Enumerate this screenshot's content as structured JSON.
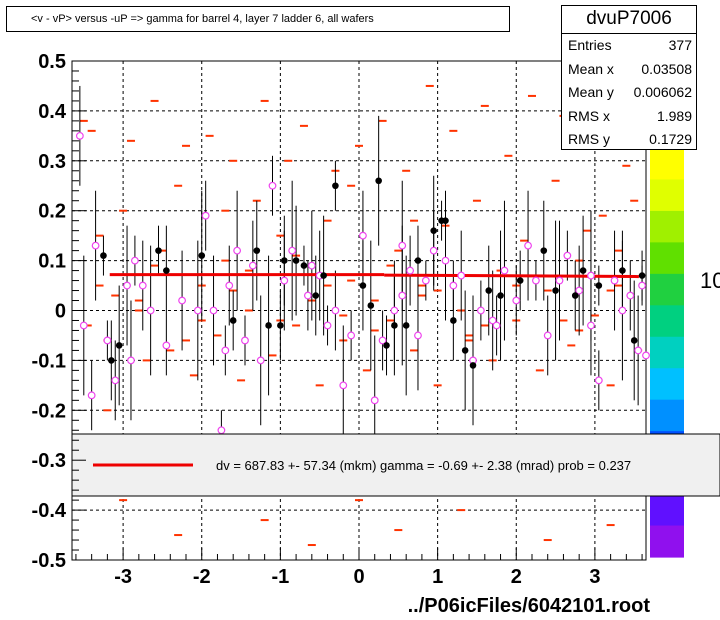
{
  "title": "<v - vP>       versus  -uP =>  gamma for barrel 4, layer 7 ladder 6, all wafers",
  "footer": "../P06icFiles/6042101.root",
  "stats": {
    "name": "dvuP7006",
    "rows": [
      {
        "label": "Entries",
        "value": "377"
      },
      {
        "label": "Mean x",
        "value": "0.03508"
      },
      {
        "label": "Mean y",
        "value": "0.006062"
      },
      {
        "label": "RMS x",
        "value": "1.989"
      },
      {
        "label": "RMS y",
        "value": "0.1729"
      }
    ]
  },
  "colors": {
    "histogram": "#ff3300",
    "profile_black": "#000000",
    "profile_open": "#ee44ee",
    "fit": "#ee0000",
    "legend_bg": "#f0f0f0"
  },
  "chart_data": {
    "type": "scatter",
    "xlim": [
      -3.65,
      3.65
    ],
    "ylim": [
      -0.5,
      0.5
    ],
    "xticks": [
      -3,
      -2,
      -1,
      0,
      1,
      2,
      3
    ],
    "xtick_labels": [
      "-3",
      "-2",
      "-1",
      "0",
      "1",
      "2",
      "3"
    ],
    "yticks": [
      -0.5,
      -0.4,
      -0.3,
      -0.2,
      -0.1,
      0,
      0.1,
      0.2,
      0.3,
      0.4,
      0.5
    ],
    "ytick_labels": [
      "-0.5",
      "-0.4",
      "-0.3",
      "-0.2",
      "-0.1",
      "0",
      "0.1",
      "0.2",
      "0.3",
      "0.4",
      "0.5"
    ],
    "grid": true,
    "palette_labels": [
      "10",
      "10"
    ],
    "fit": {
      "text": "dv =  687.83 +- 57.34 (mkm) gamma =   -0.69 +-  2.38 (mrad) prob = 0.237",
      "segments": [
        {
          "x": [
            -3.17,
            0.32
          ],
          "y": [
            0.072,
            0.072
          ]
        },
        {
          "x": [
            0.32,
            3.56
          ],
          "y": [
            0.071,
            0.068
          ]
        }
      ]
    },
    "histogram_cells": [
      [
        -3.5,
        0.38
      ],
      [
        -3.4,
        0.36
      ],
      [
        -3.45,
        -0.03
      ],
      [
        -3.3,
        0.15
      ],
      [
        -3.2,
        -0.06
      ],
      [
        -3.1,
        0.03
      ],
      [
        -3.2,
        -0.2
      ],
      [
        -3.0,
        0.2
      ],
      [
        -2.9,
        0.34
      ],
      [
        -2.8,
        0.0
      ],
      [
        -2.7,
        -0.1
      ],
      [
        -2.6,
        0.42
      ],
      [
        -2.5,
        0.12
      ],
      [
        -2.4,
        -0.08
      ],
      [
        -2.3,
        0.25
      ],
      [
        -2.2,
        0.33
      ],
      [
        -2.1,
        -0.13
      ],
      [
        -2.0,
        0.05
      ],
      [
        -1.9,
        0.35
      ],
      [
        -1.8,
        -0.05
      ],
      [
        -1.7,
        0.1
      ],
      [
        -1.6,
        0.3
      ],
      [
        -1.5,
        -0.14
      ],
      [
        -1.4,
        0.0
      ],
      [
        -1.3,
        0.22
      ],
      [
        -1.2,
        0.42
      ],
      [
        -1.1,
        -0.09
      ],
      [
        -1.0,
        0.15
      ],
      [
        -0.9,
        0.3
      ],
      [
        -0.8,
        -0.03
      ],
      [
        -0.7,
        0.37
      ],
      [
        -0.6,
        0.02
      ],
      [
        -0.5,
        -0.15
      ],
      [
        -0.4,
        0.18
      ],
      [
        -0.3,
        0.28
      ],
      [
        -0.2,
        -0.06
      ],
      [
        -0.1,
        0.06
      ],
      [
        0.0,
        0.33
      ],
      [
        0.1,
        -0.12
      ],
      [
        0.2,
        0.02
      ],
      [
        0.3,
        0.38
      ],
      [
        0.4,
        -0.02
      ],
      [
        0.5,
        0.12
      ],
      [
        0.6,
        0.28
      ],
      [
        0.7,
        -0.08
      ],
      [
        0.8,
        0.05
      ],
      [
        0.9,
        0.45
      ],
      [
        1.0,
        -0.15
      ],
      [
        1.1,
        0.17
      ],
      [
        1.2,
        0.36
      ],
      [
        1.3,
        0.0
      ],
      [
        1.4,
        -0.05
      ],
      [
        1.5,
        0.22
      ],
      [
        1.6,
        0.41
      ],
      [
        1.7,
        -0.1
      ],
      [
        1.8,
        0.08
      ],
      [
        1.9,
        0.31
      ],
      [
        2.0,
        -0.02
      ],
      [
        2.1,
        0.14
      ],
      [
        2.2,
        0.43
      ],
      [
        2.3,
        -0.12
      ],
      [
        2.4,
        0.04
      ],
      [
        2.5,
        0.26
      ],
      [
        2.6,
        0.39
      ],
      [
        2.7,
        -0.07
      ],
      [
        2.8,
        0.1
      ],
      [
        2.9,
        0.34
      ],
      [
        3.0,
        -0.01
      ],
      [
        3.1,
        0.19
      ],
      [
        3.2,
        -0.15
      ],
      [
        3.3,
        0.05
      ],
      [
        3.4,
        0.29
      ],
      [
        3.5,
        0.22
      ],
      [
        3.55,
        -0.08
      ],
      [
        -2.6,
        0.09
      ],
      [
        -2.0,
        -0.02
      ],
      [
        -1.4,
        0.08
      ],
      [
        -0.8,
        0.11
      ],
      [
        -0.2,
        -0.01
      ],
      [
        0.4,
        0.09
      ],
      [
        1.0,
        0.04
      ],
      [
        1.6,
        -0.03
      ],
      [
        2.2,
        0.07
      ],
      [
        2.8,
        -0.04
      ],
      [
        3.3,
        0.12
      ],
      [
        -3.0,
        -0.38
      ],
      [
        -2.3,
        -0.45
      ],
      [
        -1.2,
        -0.42
      ],
      [
        -0.6,
        -0.47
      ],
      [
        0.5,
        -0.44
      ],
      [
        1.3,
        -0.4
      ],
      [
        2.4,
        -0.46
      ],
      [
        3.2,
        -0.43
      ],
      [
        -1.9,
        -0.36
      ],
      [
        0.0,
        -0.38
      ],
      [
        1.9,
        -0.37
      ],
      [
        -2.8,
        0.02
      ],
      [
        -2.2,
        -0.06
      ],
      [
        -1.6,
        0.04
      ],
      [
        -1.0,
        -0.02
      ],
      [
        -0.4,
        0.05
      ],
      [
        0.2,
        -0.04
      ],
      [
        0.8,
        0.03
      ],
      [
        1.4,
        -0.06
      ],
      [
        2.0,
        0.05
      ],
      [
        2.6,
        -0.02
      ],
      [
        3.2,
        0.04
      ],
      [
        -3.3,
        0.05
      ],
      [
        -1.7,
        0.2
      ],
      [
        0.7,
        0.18
      ],
      [
        2.9,
        0.16
      ],
      [
        -0.1,
        0.25
      ]
    ],
    "profile_black": [
      [
        -3.25,
        0.11
      ],
      [
        -3.15,
        -0.1
      ],
      [
        -3.05,
        -0.07
      ],
      [
        -2.55,
        0.12
      ],
      [
        -2.45,
        0.08
      ],
      [
        -2.0,
        0.11
      ],
      [
        -1.6,
        -0.02
      ],
      [
        -1.3,
        0.12
      ],
      [
        -1.15,
        -0.03
      ],
      [
        -1.0,
        -0.03
      ],
      [
        -0.8,
        0.1
      ],
      [
        -0.7,
        0.09
      ],
      [
        -0.55,
        0.03
      ],
      [
        -0.45,
        0.07
      ],
      [
        -0.3,
        0.25
      ],
      [
        0.05,
        0.05
      ],
      [
        0.15,
        0.01
      ],
      [
        0.35,
        -0.07
      ],
      [
        0.45,
        -0.03
      ],
      [
        0.6,
        -0.03
      ],
      [
        0.75,
        0.1
      ],
      [
        0.95,
        0.16
      ],
      [
        1.05,
        0.18
      ],
      [
        1.2,
        -0.02
      ],
      [
        1.35,
        -0.08
      ],
      [
        1.45,
        -0.11
      ],
      [
        1.65,
        0.04
      ],
      [
        1.8,
        0.03
      ],
      [
        2.05,
        0.06
      ],
      [
        2.35,
        0.12
      ],
      [
        2.5,
        0.04
      ],
      [
        2.75,
        0.03
      ],
      [
        2.85,
        0.08
      ],
      [
        3.05,
        0.05
      ],
      [
        3.35,
        0.08
      ],
      [
        3.5,
        -0.06
      ],
      [
        3.6,
        0.07
      ],
      [
        -0.95,
        0.1
      ],
      [
        0.25,
        0.26
      ],
      [
        1.1,
        0.18
      ]
    ],
    "profile_open": [
      [
        -3.55,
        0.35
      ],
      [
        -3.5,
        -0.03
      ],
      [
        -3.4,
        -0.17
      ],
      [
        -3.35,
        0.13
      ],
      [
        -3.2,
        -0.06
      ],
      [
        -3.1,
        -0.14
      ],
      [
        -2.95,
        0.05
      ],
      [
        -2.85,
        0.1
      ],
      [
        -2.75,
        0.05
      ],
      [
        -2.65,
        0.0
      ],
      [
        -2.45,
        -0.07
      ],
      [
        -2.25,
        0.02
      ],
      [
        -2.05,
        0.0
      ],
      [
        -1.95,
        0.19
      ],
      [
        -1.85,
        0.0
      ],
      [
        -1.75,
        -0.24
      ],
      [
        -1.65,
        0.05
      ],
      [
        -1.55,
        0.12
      ],
      [
        -1.45,
        -0.06
      ],
      [
        -1.35,
        0.09
      ],
      [
        -1.25,
        -0.1
      ],
      [
        -1.1,
        0.25
      ],
      [
        -0.95,
        0.06
      ],
      [
        -0.85,
        0.12
      ],
      [
        -0.65,
        0.03
      ],
      [
        -0.6,
        0.09
      ],
      [
        -0.4,
        -0.03
      ],
      [
        -0.3,
        0.0
      ],
      [
        -0.2,
        -0.15
      ],
      [
        -0.1,
        -0.05
      ],
      [
        0.05,
        0.15
      ],
      [
        0.2,
        -0.18
      ],
      [
        0.3,
        -0.06
      ],
      [
        0.45,
        0.0
      ],
      [
        0.55,
        0.03
      ],
      [
        0.65,
        0.08
      ],
      [
        0.75,
        -0.05
      ],
      [
        0.85,
        0.06
      ],
      [
        0.95,
        0.12
      ],
      [
        1.1,
        0.1
      ],
      [
        1.2,
        0.05
      ],
      [
        1.3,
        0.07
      ],
      [
        1.45,
        -0.1
      ],
      [
        1.55,
        0.0
      ],
      [
        1.7,
        -0.02
      ],
      [
        1.85,
        0.08
      ],
      [
        2.0,
        0.02
      ],
      [
        2.15,
        0.13
      ],
      [
        2.25,
        0.06
      ],
      [
        2.4,
        -0.05
      ],
      [
        2.55,
        0.06
      ],
      [
        2.65,
        0.11
      ],
      [
        2.8,
        0.04
      ],
      [
        2.95,
        0.07
      ],
      [
        3.05,
        -0.14
      ],
      [
        3.25,
        0.06
      ],
      [
        3.35,
        0.0
      ],
      [
        3.45,
        0.03
      ],
      [
        3.55,
        -0.08
      ],
      [
        3.6,
        0.05
      ],
      [
        3.65,
        -0.09
      ],
      [
        -2.9,
        -0.1
      ],
      [
        -1.7,
        -0.08
      ],
      [
        -0.5,
        0.07
      ],
      [
        0.55,
        0.13
      ],
      [
        1.75,
        -0.03
      ],
      [
        2.95,
        -0.03
      ]
    ]
  }
}
